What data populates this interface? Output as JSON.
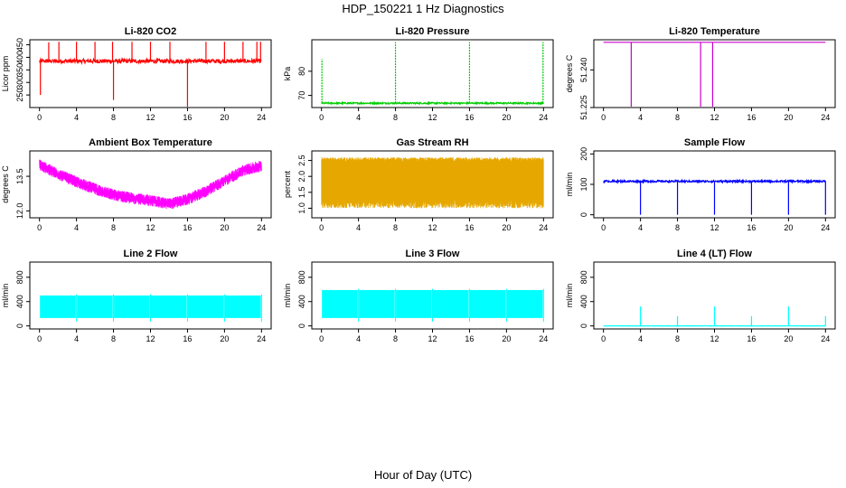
{
  "figure": {
    "title": "HDP_150221  1 Hz Diagnostics",
    "xlabel": "Hour of Day (UTC)"
  },
  "chart_data": [
    {
      "type": "line",
      "title": "Li-820 CO2",
      "ylabel": "Licor ppm",
      "color": "#ff0000",
      "xlim": [
        0,
        24
      ],
      "ylim": [
        200,
        470
      ],
      "xticks": [
        0,
        4,
        8,
        12,
        16,
        20,
        24
      ],
      "yticks": [
        250,
        300,
        350,
        400,
        450
      ],
      "series": [
        {
          "baseline": 385,
          "noise": 8,
          "spikes": [
            {
              "x": 0.1,
              "y": 250
            },
            {
              "x": 1.0,
              "y": 460
            },
            {
              "x": 2.1,
              "y": 462
            },
            {
              "x": 4.0,
              "y": 462
            },
            {
              "x": 6.0,
              "y": 462
            },
            {
              "x": 7.9,
              "y": 462
            },
            {
              "x": 8.0,
              "y": 230
            },
            {
              "x": 10.0,
              "y": 462
            },
            {
              "x": 12.0,
              "y": 462
            },
            {
              "x": 14.1,
              "y": 462
            },
            {
              "x": 16.0,
              "y": 200
            },
            {
              "x": 18.0,
              "y": 462
            },
            {
              "x": 20.0,
              "y": 462
            },
            {
              "x": 22.0,
              "y": 462
            },
            {
              "x": 23.5,
              "y": 462
            },
            {
              "x": 23.9,
              "y": 462
            }
          ]
        }
      ]
    },
    {
      "type": "line",
      "title": "Li-820 Pressure",
      "ylabel": "kPa",
      "color": "#00cc00",
      "xlim": [
        0,
        24
      ],
      "ylim": [
        65,
        93
      ],
      "xticks": [
        0,
        4,
        8,
        12,
        16,
        20,
        24
      ],
      "yticks": [
        70,
        80
      ],
      "series": [
        {
          "baseline": 66.8,
          "noise": 0.3,
          "spikes": [
            {
              "x": 0.05,
              "y": 85
            },
            {
              "x": 8.0,
              "y": 92
            },
            {
              "x": 16.0,
              "y": 92
            },
            {
              "x": 23.95,
              "y": 92
            }
          ]
        }
      ]
    },
    {
      "type": "line",
      "title": "Li-820 Temperature",
      "ylabel": "degrees C",
      "color": "#cc00cc",
      "xlim": [
        0,
        24
      ],
      "ylim": [
        51.225,
        51.252
      ],
      "xticks": [
        0,
        4,
        8,
        12,
        16,
        20,
        24
      ],
      "yticks": [
        51.225,
        51.24
      ],
      "series": [
        {
          "baseline": 51.251,
          "noise": 0,
          "spikes": [
            {
              "x": 3.0,
              "y": 51.225
            },
            {
              "x": 10.5,
              "y": 51.225
            },
            {
              "x": 11.8,
              "y": 51.225
            }
          ]
        }
      ]
    },
    {
      "type": "line",
      "title": "Ambient Box Temperature",
      "ylabel": "degrees C",
      "color": "#ff00ff",
      "xlim": [
        0,
        24
      ],
      "ylim": [
        11.7,
        14.6
      ],
      "xticks": [
        0,
        4,
        8,
        12,
        16,
        20,
        24
      ],
      "yticks": [
        12.0,
        13.5
      ],
      "series": [
        {
          "x": [
            0,
            2,
            4,
            6,
            8,
            10,
            12,
            14,
            16,
            18,
            20,
            22,
            24
          ],
          "y": [
            14.0,
            13.6,
            13.25,
            12.95,
            12.7,
            12.55,
            12.45,
            12.3,
            12.5,
            12.85,
            13.3,
            13.75,
            13.95
          ],
          "noise": 0.25
        }
      ]
    },
    {
      "type": "line",
      "title": "Gas Stream RH",
      "ylabel": "percent",
      "color": "#e6a800",
      "xlim": [
        0,
        24
      ],
      "ylim": [
        0.7,
        2.8
      ],
      "xticks": [
        0,
        4,
        8,
        12,
        16,
        20,
        24
      ],
      "yticks": [
        1.0,
        1.5,
        2.0,
        2.5
      ],
      "series": [
        {
          "band_low": 1.0,
          "band_high": 2.6
        }
      ]
    },
    {
      "type": "line",
      "title": "Sample Flow",
      "ylabel": "ml/min",
      "color": "#0000ff",
      "xlim": [
        0,
        24
      ],
      "ylim": [
        -10,
        210
      ],
      "xticks": [
        0,
        4,
        8,
        12,
        16,
        20,
        24
      ],
      "yticks": [
        0,
        100,
        200
      ],
      "series": [
        {
          "baseline": 110,
          "noise": 3,
          "spikes": [
            {
              "x": 4.0,
              "y": 0
            },
            {
              "x": 8.0,
              "y": 0
            },
            {
              "x": 12.0,
              "y": 0
            },
            {
              "x": 16.0,
              "y": 0
            },
            {
              "x": 20.0,
              "y": 0
            },
            {
              "x": 24.0,
              "y": 0
            }
          ]
        }
      ]
    },
    {
      "type": "area",
      "title": "Line 2 Flow",
      "ylabel": "ml/min",
      "color": "#00ffff",
      "xlim": [
        0,
        24
      ],
      "ylim": [
        -50,
        1050
      ],
      "xticks": [
        0,
        4,
        8,
        12,
        16,
        20,
        24
      ],
      "yticks": [
        0,
        400,
        800
      ],
      "series": [
        {
          "band_low": 130,
          "band_high": 500,
          "gaps": [
            4,
            8,
            12,
            16,
            20,
            24
          ]
        }
      ]
    },
    {
      "type": "area",
      "title": "Line 3 Flow",
      "ylabel": "ml/min",
      "color": "#00ffff",
      "xlim": [
        0,
        24
      ],
      "ylim": [
        -50,
        1050
      ],
      "xticks": [
        0,
        4,
        8,
        12,
        16,
        20,
        24
      ],
      "yticks": [
        0,
        400,
        800
      ],
      "series": [
        {
          "band_low": 130,
          "band_high": 590,
          "gaps": [
            4,
            8,
            12,
            16,
            20,
            24
          ]
        }
      ]
    },
    {
      "type": "line",
      "title": "Line 4 (LT) Flow",
      "ylabel": "ml/min",
      "color": "#00ffff",
      "xlim": [
        0,
        24
      ],
      "ylim": [
        -50,
        1050
      ],
      "xticks": [
        0,
        4,
        8,
        12,
        16,
        20,
        24
      ],
      "yticks": [
        0,
        400,
        800
      ],
      "series": [
        {
          "baseline": 0,
          "noise": 3,
          "spikes": [
            {
              "x": 4.0,
              "y": 320
            },
            {
              "x": 8.0,
              "y": 160
            },
            {
              "x": 12.0,
              "y": 320
            },
            {
              "x": 16.0,
              "y": 160
            },
            {
              "x": 20.0,
              "y": 320
            },
            {
              "x": 24.0,
              "y": 160
            }
          ]
        }
      ]
    }
  ]
}
